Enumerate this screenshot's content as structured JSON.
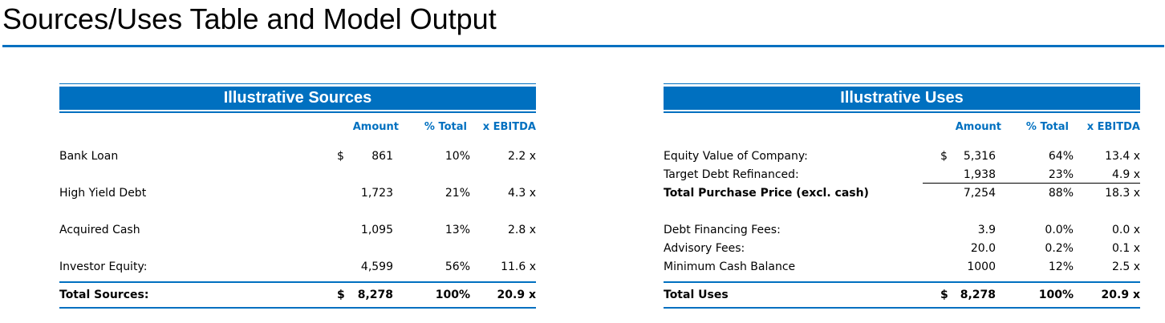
{
  "page": {
    "title": "Sources/Uses Table and Model Output"
  },
  "sources": {
    "heading": "Illustrative Sources",
    "columns": [
      "Amount",
      "% Total",
      "x EBITDA"
    ],
    "rows": [
      {
        "label": "Bank Loan",
        "currency": "$",
        "amount": "861",
        "pct": "10%",
        "ebitda": "2.2 x"
      },
      {
        "label": "High Yield Debt",
        "currency": "",
        "amount": "1,723",
        "pct": "21%",
        "ebitda": "4.3 x"
      },
      {
        "label": "Acquired Cash",
        "currency": "",
        "amount": "1,095",
        "pct": "13%",
        "ebitda": "2.8 x"
      },
      {
        "label": "Investor Equity:",
        "currency": "",
        "amount": "4,599",
        "pct": "56%",
        "ebitda": "11.6 x"
      }
    ],
    "total": {
      "label": "Total Sources:",
      "currency": "$",
      "amount": "8,278",
      "pct": "100%",
      "ebitda": "20.9 x"
    }
  },
  "uses": {
    "heading": "Illustrative Uses",
    "columns": [
      "Amount",
      "% Total",
      "x EBITDA"
    ],
    "rows": [
      {
        "label": "Equity Value of Company:",
        "currency": "$",
        "amount": "5,316",
        "pct": "64%",
        "ebitda": "13.4 x"
      },
      {
        "label": "Target Debt Refinanced:",
        "currency": "",
        "amount": "1,938",
        "pct": "23%",
        "ebitda": "4.9 x"
      },
      {
        "label": "Total Purchase Price (excl. cash)",
        "currency": "",
        "amount": "7,254",
        "pct": "88%",
        "ebitda": "18.3 x"
      },
      {
        "label": "Debt Financing Fees:",
        "currency": "",
        "amount": "3.9",
        "pct": "0.0%",
        "ebitda": "0.0 x"
      },
      {
        "label": "Advisory Fees:",
        "currency": "",
        "amount": "20.0",
        "pct": "0.2%",
        "ebitda": "0.1 x"
      },
      {
        "label": "Minimum Cash Balance",
        "currency": "",
        "amount": "1000",
        "pct": "12%",
        "ebitda": "2.5 x"
      }
    ],
    "total": {
      "label": "Total Uses",
      "currency": "$",
      "amount": "8,278",
      "pct": "100%",
      "ebitda": "20.9 x"
    }
  }
}
